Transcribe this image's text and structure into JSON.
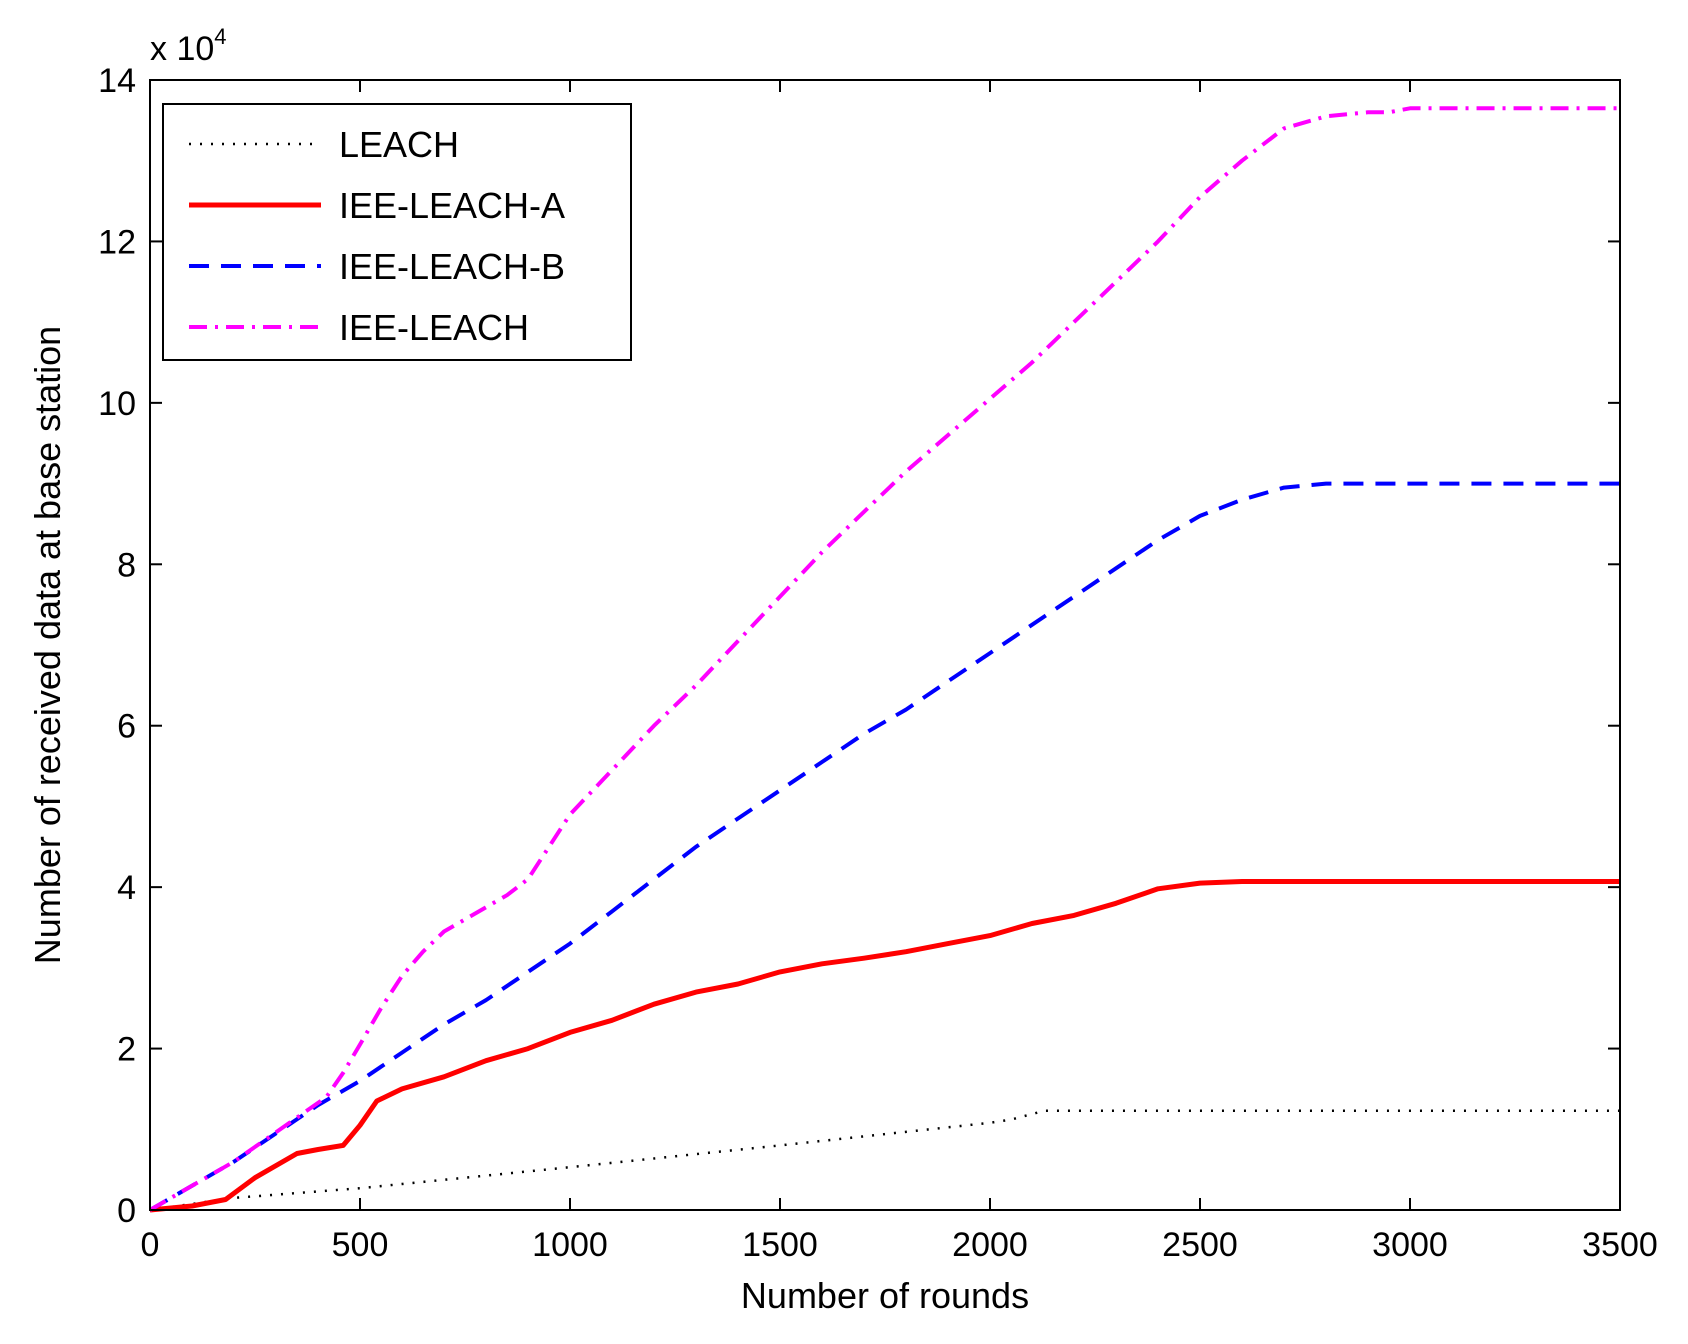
{
  "chart_data": {
    "type": "line",
    "title": "",
    "xlabel": "Number of rounds",
    "ylabel": "Number of received data at base station",
    "y_exponent_base": "x 10",
    "y_exponent": "4",
    "xlim": [
      0,
      3500
    ],
    "ylim": [
      0,
      14
    ],
    "y_scale": 10000,
    "xticks": [
      0,
      500,
      1000,
      1500,
      2000,
      2500,
      3000,
      3500
    ],
    "yticks": [
      0,
      2,
      4,
      6,
      8,
      10,
      12,
      14
    ],
    "grid": false,
    "legend_position": "top-left",
    "series": [
      {
        "name": "LEACH",
        "color": "#000000",
        "style": "dotted",
        "x": [
          0,
          200,
          500,
          1000,
          1500,
          2000,
          2050,
          2130,
          2500,
          3000,
          3500
        ],
        "y": [
          0,
          0.15,
          0.27,
          0.53,
          0.8,
          1.08,
          1.12,
          1.23,
          1.23,
          1.23,
          1.23
        ]
      },
      {
        "name": "IEE-LEACH-A",
        "color": "#ff0000",
        "style": "solid",
        "x": [
          0,
          100,
          180,
          250,
          350,
          400,
          460,
          500,
          540,
          600,
          700,
          800,
          900,
          1000,
          1100,
          1200,
          1300,
          1400,
          1500,
          1600,
          1700,
          1800,
          1900,
          2000,
          2100,
          2200,
          2300,
          2400,
          2500,
          2600,
          3000,
          3500
        ],
        "y": [
          0,
          0.05,
          0.13,
          0.4,
          0.7,
          0.75,
          0.8,
          1.05,
          1.35,
          1.5,
          1.65,
          1.85,
          2.0,
          2.2,
          2.35,
          2.55,
          2.7,
          2.8,
          2.95,
          3.05,
          3.12,
          3.2,
          3.3,
          3.4,
          3.55,
          3.65,
          3.8,
          3.98,
          4.05,
          4.07,
          4.07,
          4.07
        ]
      },
      {
        "name": "IEE-LEACH-B",
        "color": "#0000ff",
        "style": "dashed",
        "x": [
          0,
          200,
          400,
          500,
          600,
          700,
          800,
          900,
          1000,
          1100,
          1200,
          1300,
          1400,
          1500,
          1600,
          1700,
          1800,
          1900,
          2000,
          2100,
          2200,
          2300,
          2400,
          2500,
          2600,
          2700,
          2800,
          2900,
          3000,
          3200,
          3400,
          3500
        ],
        "y": [
          0,
          0.6,
          1.3,
          1.6,
          1.95,
          2.3,
          2.6,
          2.95,
          3.3,
          3.7,
          4.1,
          4.5,
          4.85,
          5.2,
          5.55,
          5.9,
          6.2,
          6.55,
          6.9,
          7.25,
          7.6,
          7.95,
          8.3,
          8.6,
          8.8,
          8.95,
          9.0,
          9.0,
          9.0,
          9.0,
          9.0,
          9.0
        ]
      },
      {
        "name": "IEE-LEACH",
        "color": "#ff00ff",
        "style": "dash-dot",
        "x": [
          0,
          200,
          420,
          460,
          500,
          550,
          600,
          650,
          700,
          800,
          850,
          900,
          1000,
          1100,
          1200,
          1300,
          1400,
          1500,
          1600,
          1700,
          1800,
          1900,
          2000,
          2100,
          2200,
          2300,
          2400,
          2500,
          2600,
          2700,
          2800,
          2900,
          2950,
          3000,
          3100,
          3200,
          3300,
          3400,
          3500
        ],
        "y": [
          0,
          0.6,
          1.4,
          1.7,
          2.05,
          2.5,
          2.9,
          3.2,
          3.45,
          3.75,
          3.9,
          4.1,
          4.9,
          5.45,
          6.0,
          6.5,
          7.05,
          7.6,
          8.15,
          8.65,
          9.15,
          9.6,
          10.05,
          10.5,
          11.0,
          11.5,
          12.0,
          12.55,
          13.0,
          13.4,
          13.55,
          13.6,
          13.6,
          13.65,
          13.65,
          13.65,
          13.65,
          13.65,
          13.65
        ]
      }
    ]
  }
}
